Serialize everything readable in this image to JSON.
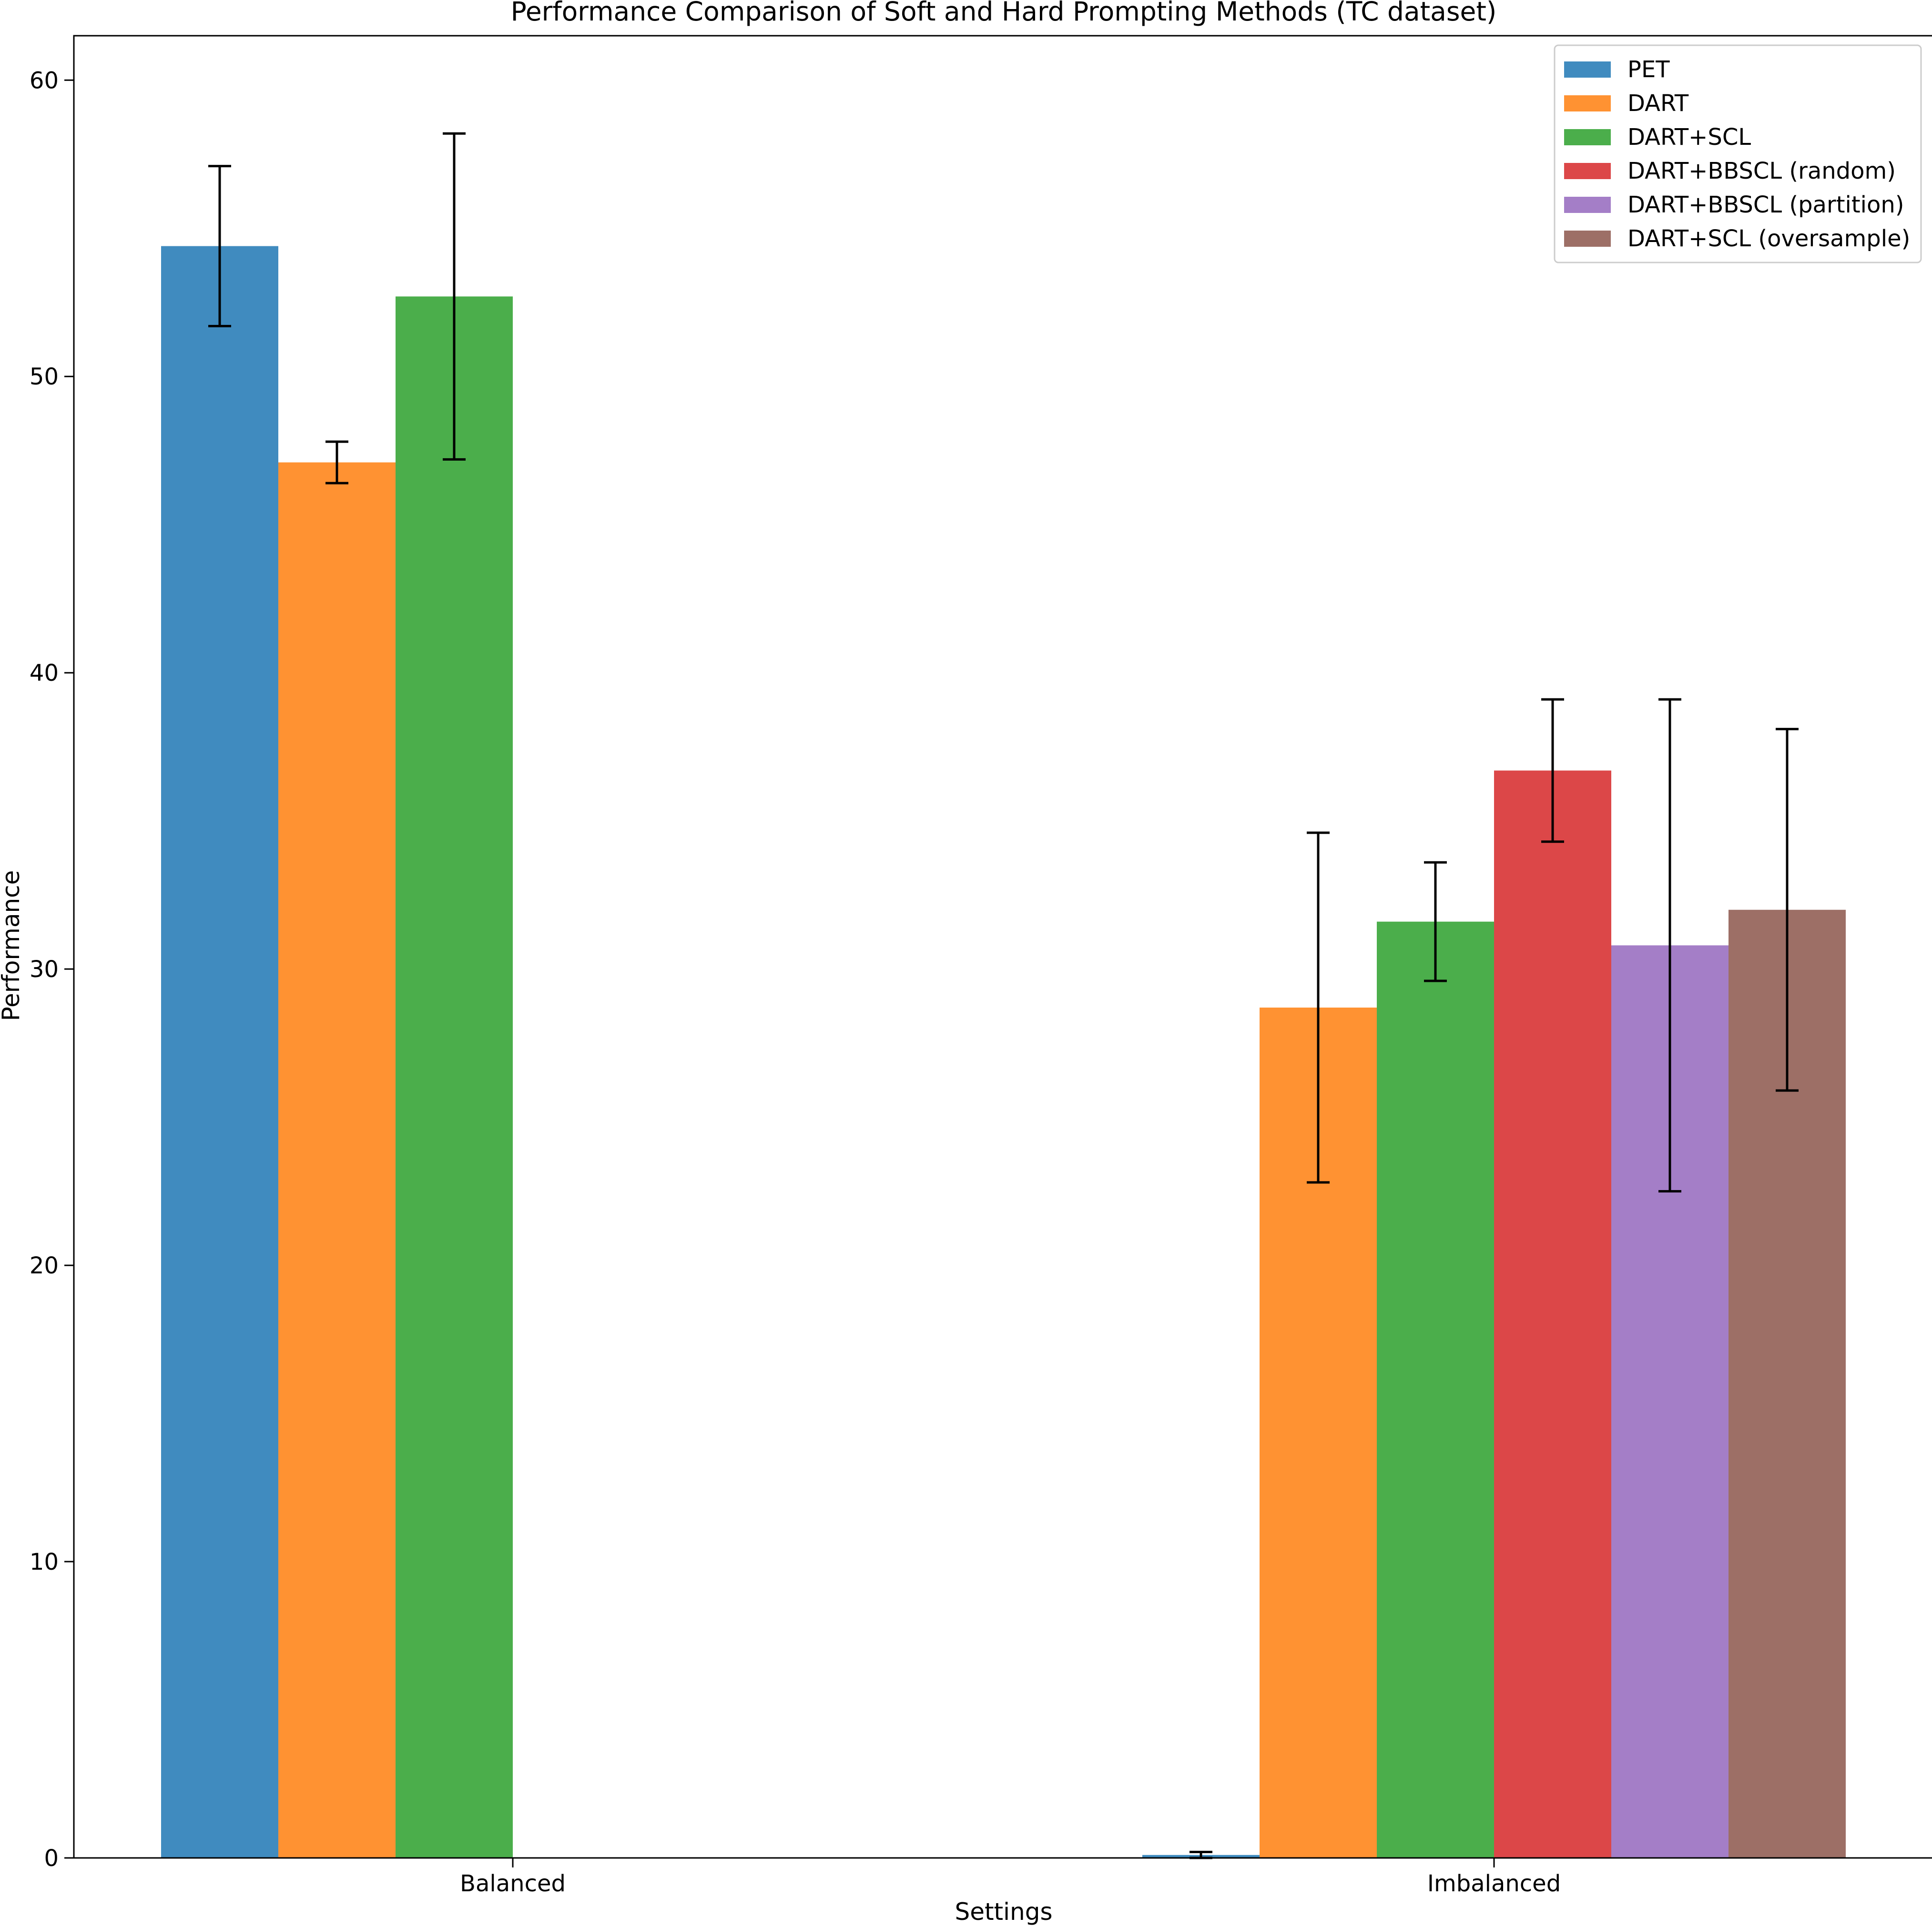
{
  "chart_data": {
    "type": "bar",
    "title": "Performance Comparison of Soft and Hard Prompting Methods (TC dataset)",
    "xlabel": "Settings",
    "ylabel": "Performance",
    "ylim": [
      0,
      61.5
    ],
    "yticks": [
      0,
      10,
      20,
      30,
      40,
      50,
      60
    ],
    "categories": [
      "Balanced",
      "Imbalanced"
    ],
    "legend_position": "upper right",
    "grid": false,
    "series": [
      {
        "name": "PET",
        "color": "#1f77b4",
        "values": [
          54.4,
          0.1
        ],
        "errors": [
          2.7,
          0.1
        ]
      },
      {
        "name": "DART",
        "color": "#ff7f0e",
        "values": [
          47.1,
          28.7
        ],
        "errors": [
          0.7,
          5.9
        ]
      },
      {
        "name": "DART+SCL",
        "color": "#2ca02c",
        "values": [
          52.7,
          31.6
        ],
        "errors": [
          5.5,
          2.0
        ]
      },
      {
        "name": "DART+BBSCL (random)",
        "color": "#d62728",
        "values": [
          0,
          36.7
        ],
        "errors": [
          0,
          2.4
        ]
      },
      {
        "name": "DART+BBSCL (partition)",
        "color": "#9467bd",
        "values": [
          0,
          30.8
        ],
        "errors": [
          0,
          8.3
        ]
      },
      {
        "name": "DART+SCL (oversample)",
        "color": "#8c564b",
        "values": [
          0,
          32.0
        ],
        "errors": [
          0,
          6.1
        ]
      }
    ]
  }
}
